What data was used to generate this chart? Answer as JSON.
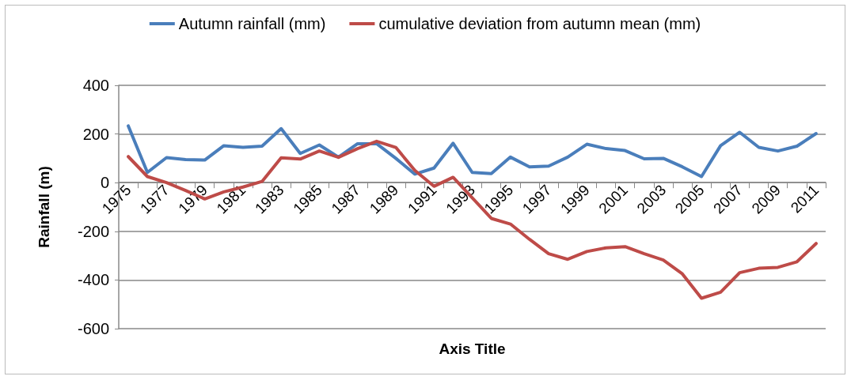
{
  "chart_data": {
    "type": "line",
    "categories": [
      "1975",
      null,
      "1977",
      null,
      "1979",
      null,
      "1981",
      null,
      "1983",
      null,
      "1985",
      null,
      "1987",
      null,
      "1989",
      null,
      "1991",
      null,
      "1993",
      null,
      "1995",
      null,
      "1997",
      null,
      "1999",
      null,
      "2001",
      null,
      "2003",
      null,
      "2005",
      null,
      "2007",
      null,
      "2009",
      null,
      "2011"
    ],
    "series": [
      {
        "name": "Autumn rainfall (mm)",
        "color": "#4a7ebb",
        "values": [
          233,
          42,
          103,
          95,
          93,
          152,
          145,
          150,
          222,
          120,
          155,
          105,
          160,
          160,
          100,
          35,
          60,
          162,
          42,
          37,
          105,
          65,
          68,
          105,
          158,
          140,
          132,
          98,
          100,
          65,
          25,
          152,
          207,
          145,
          130,
          150,
          202
        ]
      },
      {
        "name": "cumulative deviation from autumn mean (mm)",
        "color": "#be4b48",
        "values": [
          107,
          25,
          0,
          -32,
          -67,
          -38,
          -18,
          5,
          102,
          97,
          130,
          104,
          140,
          170,
          145,
          50,
          -15,
          22,
          -62,
          -147,
          -170,
          -233,
          -292,
          -315,
          -283,
          -268,
          -263,
          -292,
          -318,
          -375,
          -475,
          -450,
          -370,
          -352,
          -348,
          -325,
          -250
        ]
      }
    ],
    "xlabel": "Axis Title",
    "ylabel": "Rainfall (m)",
    "ylim": [
      -600,
      400
    ],
    "yticks": [
      -600,
      -400,
      -200,
      0,
      200,
      400
    ],
    "grid": "y",
    "legend": "top",
    "marker": "none",
    "line_style": "solid"
  }
}
